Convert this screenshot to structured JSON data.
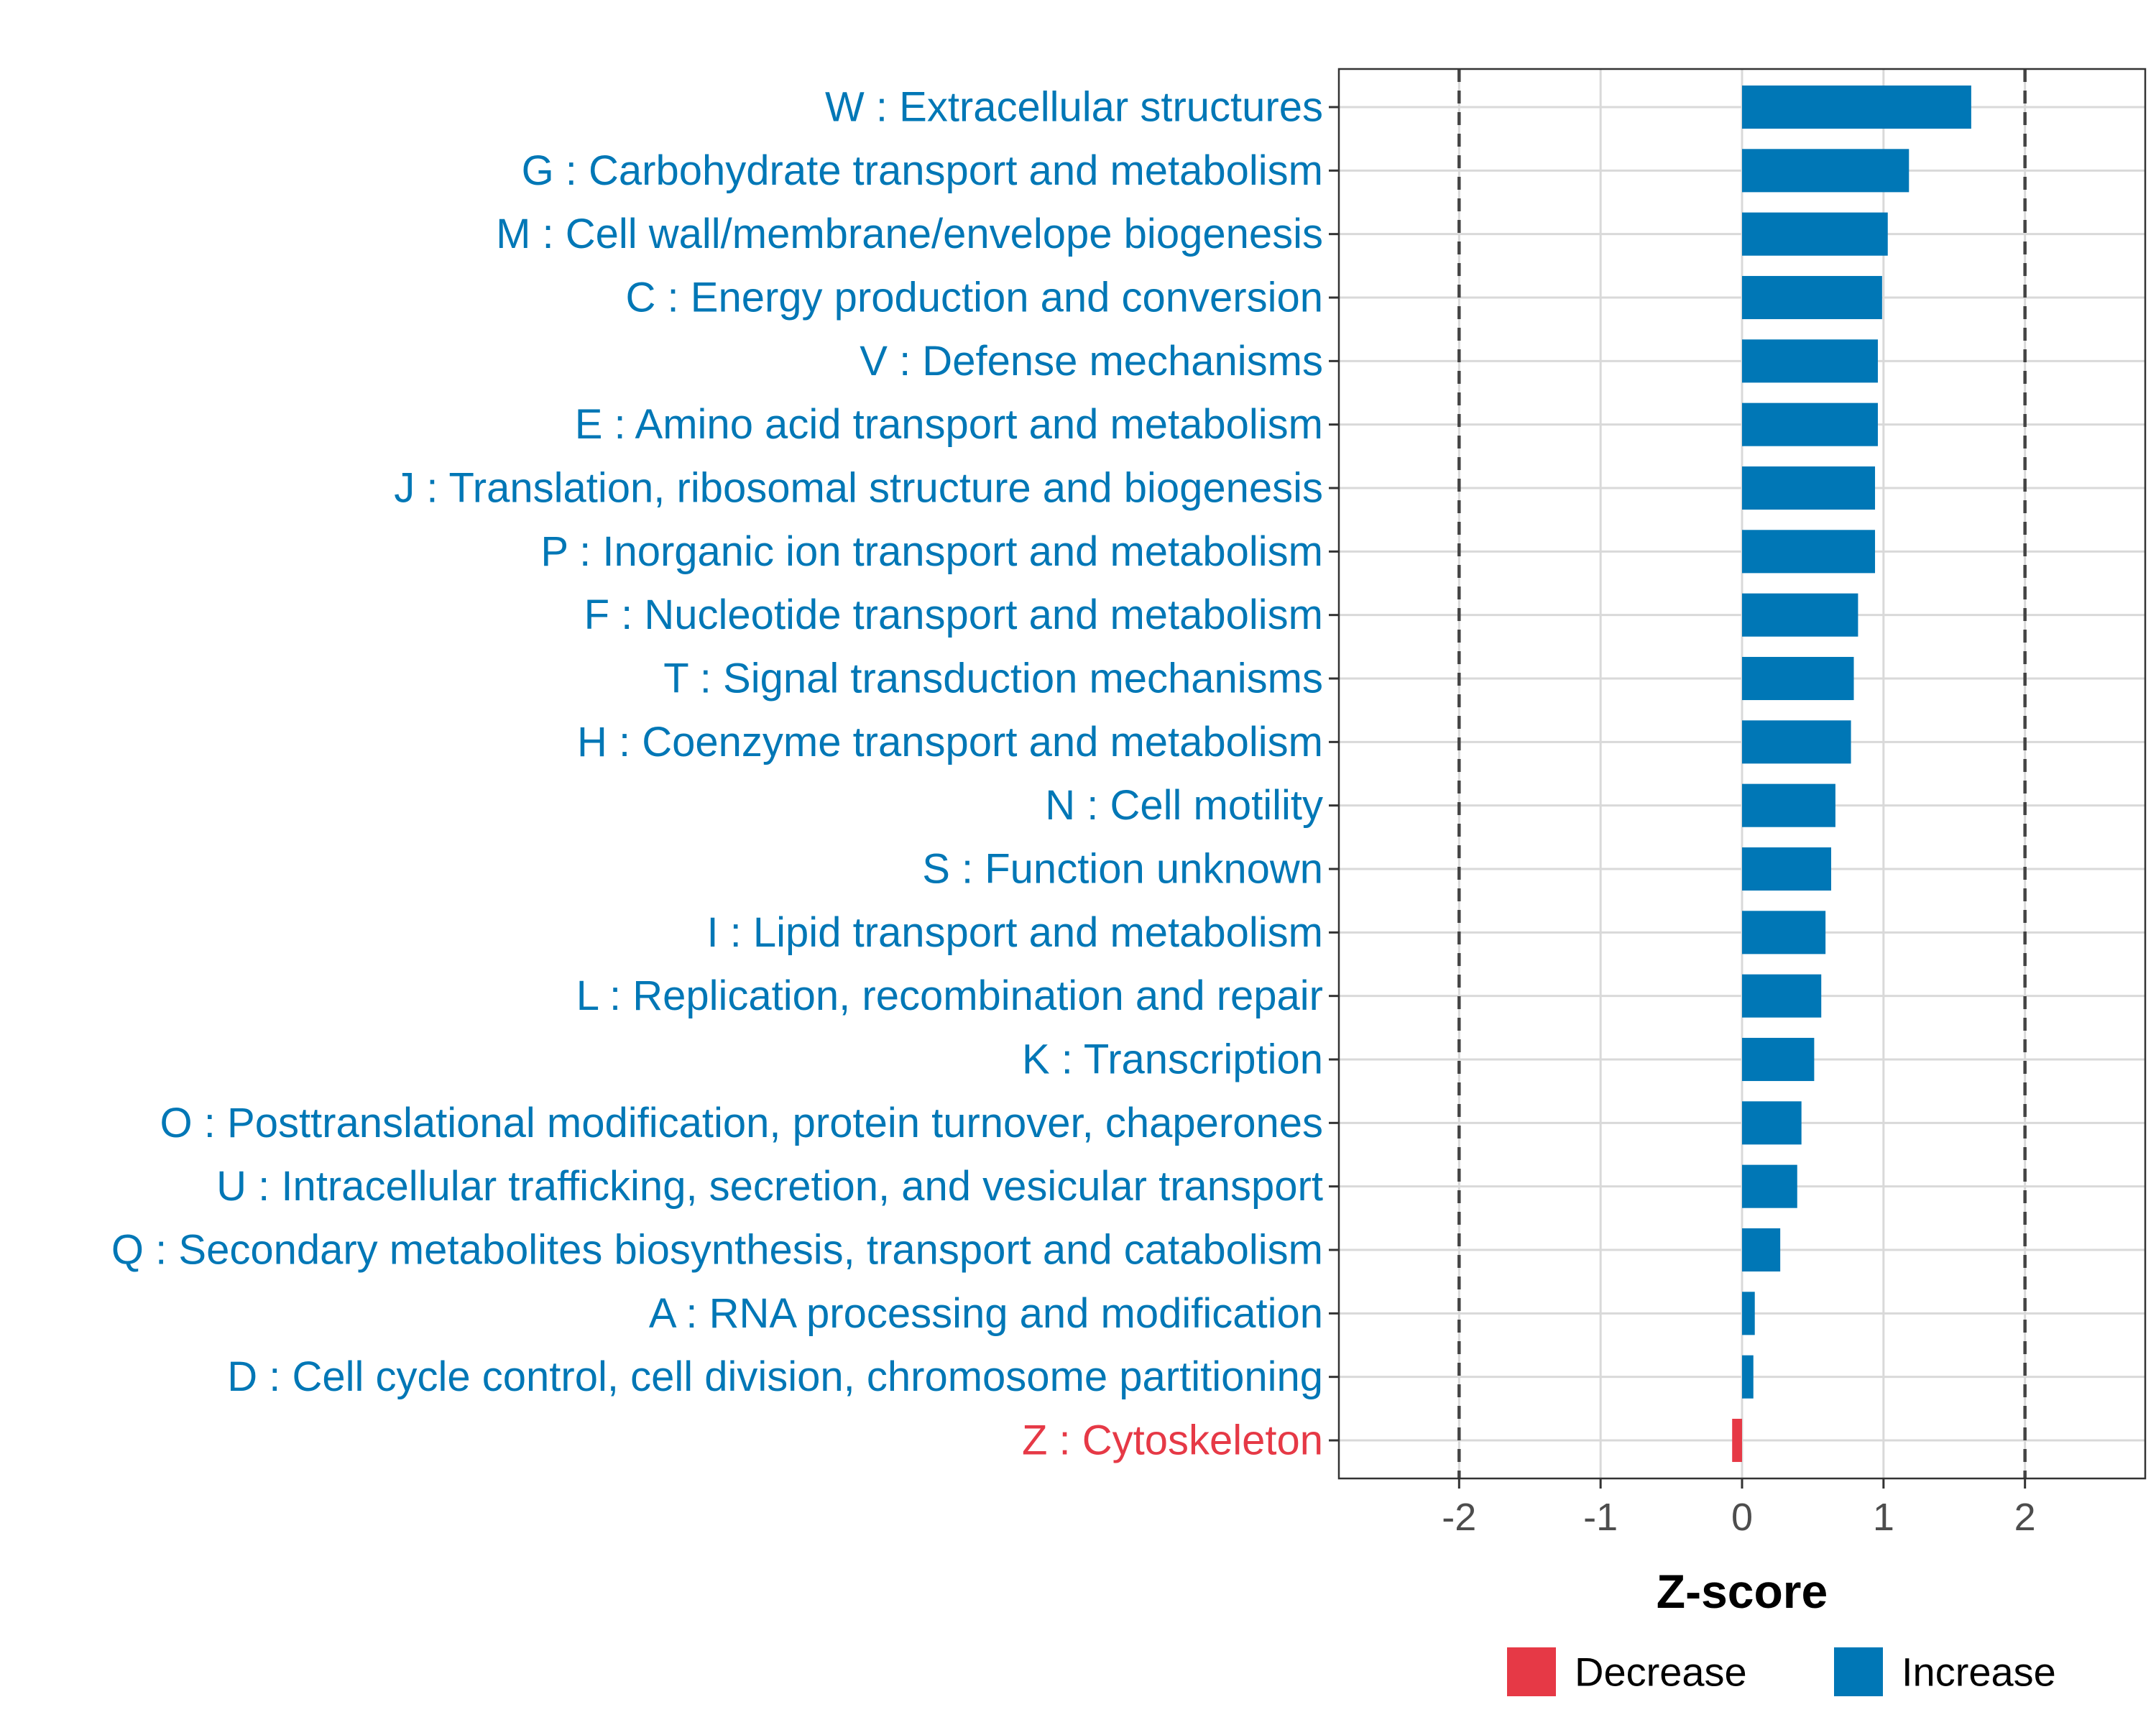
{
  "chart_data": {
    "type": "bar",
    "orientation": "horizontal",
    "title": "",
    "xlabel": "Z-score",
    "ylabel": "",
    "xlim": [
      -2.85,
      2.85
    ],
    "xticks": [
      -2,
      -1,
      0,
      1,
      2
    ],
    "xtick_labels": [
      "-2",
      "-1",
      "0",
      "1",
      "2"
    ],
    "reference_lines": [
      -2,
      2
    ],
    "grid": true,
    "legend_position": "bottom",
    "categories": [
      "W : Extracellular structures",
      "G : Carbohydrate transport and metabolism",
      "M : Cell wall/membrane/envelope biogenesis",
      "C : Energy production and conversion",
      "V : Defense mechanisms",
      "E : Amino acid transport and metabolism",
      "J : Translation, ribosomal structure and biogenesis",
      "P : Inorganic ion transport and metabolism",
      "F : Nucleotide transport and metabolism",
      "T : Signal transduction mechanisms",
      "H : Coenzyme transport and metabolism",
      "N : Cell motility",
      "S : Function unknown",
      "I : Lipid transport and metabolism",
      "L : Replication, recombination and repair",
      "K : Transcription",
      "O : Posttranslational modification, protein turnover, chaperones",
      "U : Intracellular trafficking, secretion, and vesicular transport",
      "Q : Secondary metabolites biosynthesis, transport and catabolism",
      "A : RNA processing and modification",
      "D : Cell cycle control, cell division, chromosome partitioning",
      "Z : Cytoskeleton"
    ],
    "values": [
      1.62,
      1.18,
      1.03,
      0.99,
      0.96,
      0.96,
      0.94,
      0.94,
      0.82,
      0.79,
      0.77,
      0.66,
      0.63,
      0.59,
      0.56,
      0.51,
      0.42,
      0.39,
      0.27,
      0.09,
      0.08,
      -0.07
    ],
    "direction": [
      "Increase",
      "Increase",
      "Increase",
      "Increase",
      "Increase",
      "Increase",
      "Increase",
      "Increase",
      "Increase",
      "Increase",
      "Increase",
      "Increase",
      "Increase",
      "Increase",
      "Increase",
      "Increase",
      "Increase",
      "Increase",
      "Increase",
      "Increase",
      "Increase",
      "Decrease"
    ],
    "legend": [
      {
        "label": "Decrease",
        "color": "#e63946"
      },
      {
        "label": "Increase",
        "color": "#0077b6"
      }
    ]
  }
}
